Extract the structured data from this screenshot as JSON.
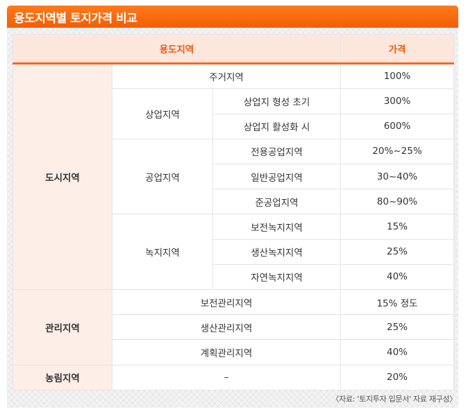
{
  "title": "용도지역별 토지가격 비교",
  "table": {
    "headers": {
      "zone": "용도지역",
      "price": "가격"
    },
    "urban": {
      "label": "도시지역",
      "residential": {
        "label": "주거지역",
        "price": "100%"
      },
      "commercial": {
        "label": "상업지역",
        "rows": [
          {
            "label": "상업지 형성 초기",
            "price": "300%"
          },
          {
            "label": "상업지 활성화 시",
            "price": "600%"
          }
        ]
      },
      "industrial": {
        "label": "공업지역",
        "rows": [
          {
            "label": "전용공업지역",
            "price": "20%~25%"
          },
          {
            "label": "일반공업지역",
            "price": "30~40%"
          },
          {
            "label": "준공업지역",
            "price": "80~90%"
          }
        ]
      },
      "green": {
        "label": "녹지지역",
        "rows": [
          {
            "label": "보전녹지지역",
            "price": "15%"
          },
          {
            "label": "생산녹지지역",
            "price": "25%"
          },
          {
            "label": "자연녹지지역",
            "price": "40%"
          }
        ]
      }
    },
    "management": {
      "label": "관리지역",
      "rows": [
        {
          "label": "보전관리지역",
          "price": "15% 정도"
        },
        {
          "label": "생산관리지역",
          "price": "25%"
        },
        {
          "label": "계획관리지역",
          "price": "40%"
        }
      ]
    },
    "agricultural": {
      "label": "농림지역",
      "sub": "–",
      "price": "20%"
    }
  },
  "source": "〈자료: '토지투자 입문서' 자료 재구성〉",
  "colors": {
    "title_bar": "#f25e05",
    "header_bg": "#fde7dd",
    "header_text": "#e85a10",
    "category_bg": "#fdeee7"
  }
}
